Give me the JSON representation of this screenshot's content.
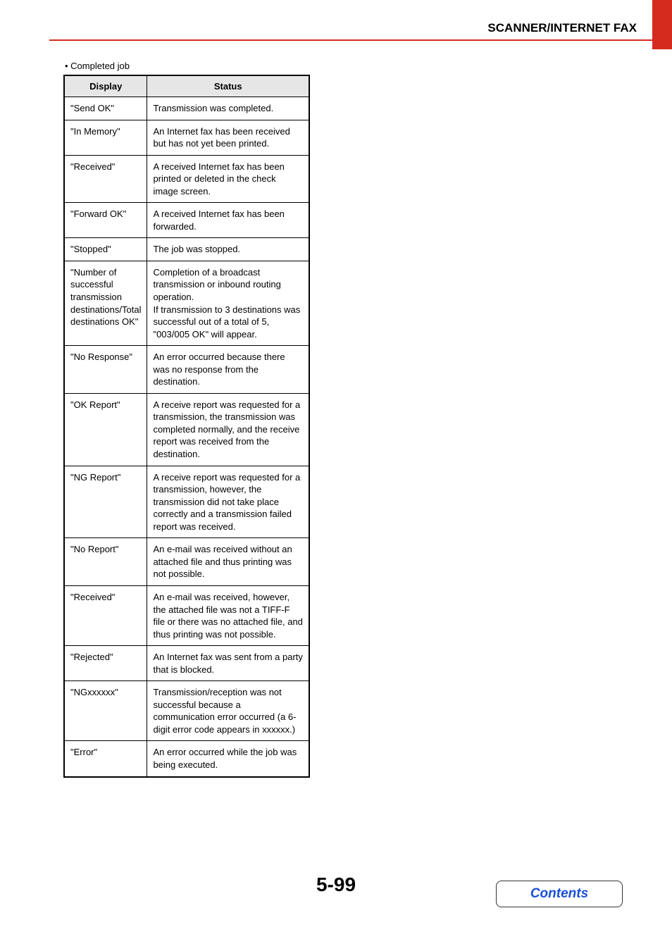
{
  "header": {
    "title": "SCANNER/INTERNET FAX"
  },
  "bullet_line": "• Completed job",
  "table": {
    "columns": [
      "Display",
      "Status"
    ],
    "rows": [
      [
        "\"Send OK\"",
        "Transmission was completed."
      ],
      [
        "\"In Memory\"",
        "An Internet fax has been received but has not yet been printed."
      ],
      [
        "\"Received\"",
        "A received Internet fax has been printed or deleted in the check image screen."
      ],
      [
        "\"Forward OK\"",
        "A received Internet fax has been forwarded."
      ],
      [
        "\"Stopped\"",
        "The job was stopped."
      ],
      [
        "\"Number of successful transmission destinations/Total destinations OK\"",
        "Completion of a broadcast transmission or inbound routing operation.\nIf transmission to 3 destinations was successful out of a total of 5, \"003/005 OK\" will appear."
      ],
      [
        "\"No Response\"",
        "An error occurred because there was no response from the destination."
      ],
      [
        "\"OK Report\"",
        "A receive report was requested for a transmission, the transmission was completed normally, and the receive report was received from the destination."
      ],
      [
        "\"NG Report\"",
        "A receive report was requested for a transmission, however, the transmission did not take place correctly and a transmission failed report was received."
      ],
      [
        "\"No Report\"",
        "An e-mail was received without an attached file and thus printing was not possible."
      ],
      [
        "\"Received\"",
        "An e-mail was received, however, the attached file was not a TIFF-F file or there was no attached file, and thus printing was not possible."
      ],
      [
        "\"Rejected\"",
        "An Internet fax was sent from a party that is blocked."
      ],
      [
        "\"NGxxxxxx\"",
        "Transmission/reception was not successful because a communication error occurred (a 6-digit error code appears in xxxxxx.)"
      ],
      [
        "\"Error\"",
        "An error occurred while the job was being executed."
      ]
    ]
  },
  "page_number": "5-99",
  "contents_label": "Contents",
  "colors": {
    "accent_red": "#d52b1e",
    "header_gray": "#e6e6e6",
    "link_blue": "#1a4fd6"
  }
}
